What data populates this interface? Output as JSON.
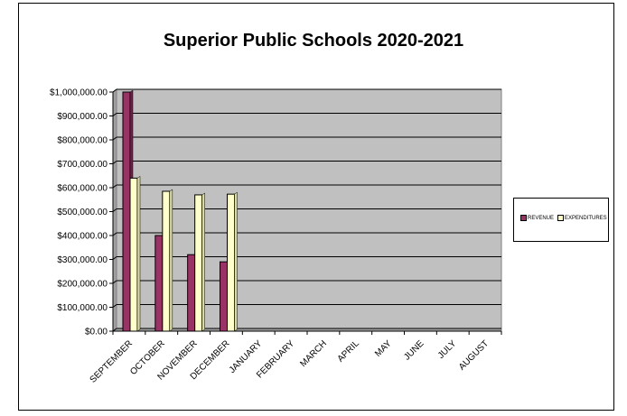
{
  "chart_data": {
    "type": "bar",
    "title": "Superior Public Schools 2020-2021",
    "xlabel": "",
    "ylabel": "",
    "categories": [
      "SEPTEMBER",
      "OCTOBER",
      "NOVEMBER",
      "DECEMBER",
      "JANUARY",
      "FEBRUARY",
      "MARCH",
      "APRIL",
      "MAY",
      "JUNE",
      "JULY",
      "AUGUST"
    ],
    "series": [
      {
        "name": "REVENUE",
        "values": [
          1000000,
          400000,
          320000,
          290000,
          null,
          null,
          null,
          null,
          null,
          null,
          null,
          null
        ],
        "color": "#993366"
      },
      {
        "name": "EXPENDITURES",
        "values": [
          640000,
          585000,
          570000,
          573000,
          null,
          null,
          null,
          null,
          null,
          null,
          null,
          null
        ],
        "color": "#ffffcc"
      }
    ],
    "ylim": [
      0,
      1000000
    ],
    "yticks": [
      0,
      100000,
      200000,
      300000,
      400000,
      500000,
      600000,
      700000,
      800000,
      900000,
      1000000
    ],
    "ytick_labels": [
      "$0.00",
      "$100,000.00",
      "$200,000.00",
      "$300,000.00",
      "$400,000.00",
      "$500,000.00",
      "$600,000.00",
      "$700,000.00",
      "$800,000.00",
      "$900,000.00",
      "$1,000,000.00"
    ],
    "grid": true,
    "legend_position": "right",
    "plot_background": "#c0c0c0"
  }
}
